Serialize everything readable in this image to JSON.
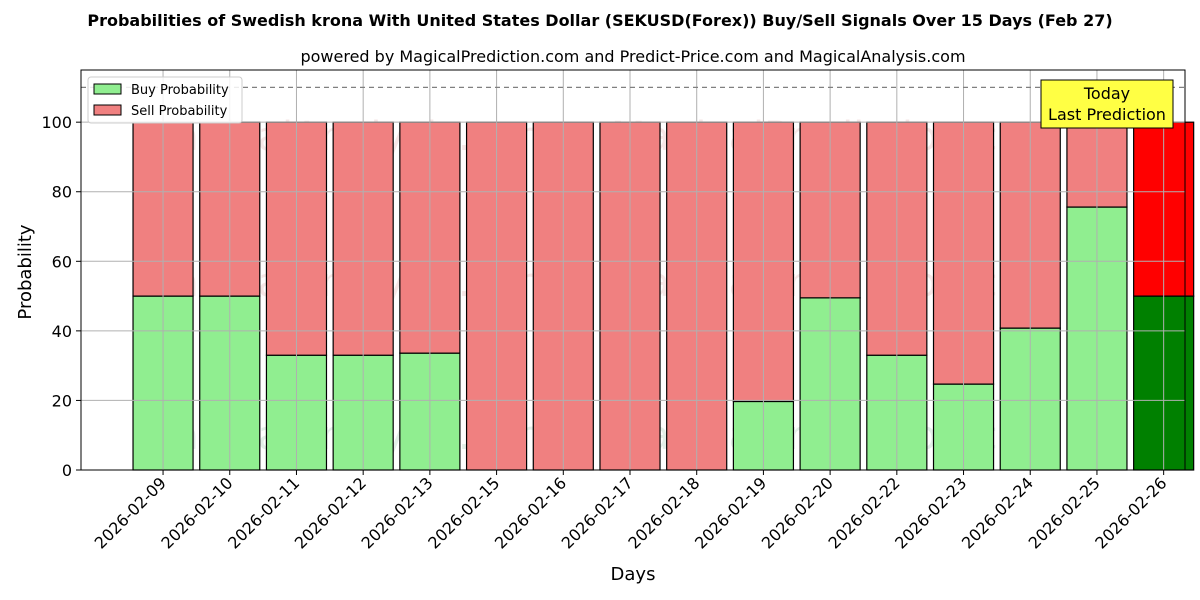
{
  "chart_data": {
    "type": "bar",
    "stacked": true,
    "title": "Probabilities of Swedish krona With United States Dollar (SEKUSD(Forex)) Buy/Sell Signals Over 15 Days (Feb 27)",
    "subtitle": "powered by MagicalPrediction.com and Predict-Price.com and MagicalAnalysis.com",
    "xlabel": "Days",
    "ylabel": "Probability",
    "ylim": [
      0,
      115
    ],
    "yticks": [
      0,
      20,
      40,
      60,
      80,
      100
    ],
    "grid": true,
    "legend_position": "top-left",
    "reference_line": 110,
    "categories": [
      "2026-02-09",
      "2026-02-10",
      "2026-02-11",
      "2026-02-12",
      "2026-02-13",
      "2026-02-15",
      "2026-02-16",
      "2026-02-17",
      "2026-02-18",
      "2026-02-19",
      "2026-02-20",
      "2026-02-22",
      "2026-02-23",
      "2026-02-24",
      "2026-02-25",
      "2026-02-26"
    ],
    "series": [
      {
        "name": "Buy Probability",
        "values": [
          50,
          50,
          33,
          33,
          33.6,
          0,
          0,
          0,
          0,
          19.7,
          49.5,
          33,
          24.7,
          40.8,
          75.6,
          50
        ],
        "color": "#90ee90",
        "highlight_color": "#008000"
      },
      {
        "name": "Sell Probability",
        "values": [
          50,
          50,
          67,
          67,
          66.4,
          100,
          100,
          100,
          100,
          80.3,
          50.5,
          67,
          75.3,
          59.2,
          24.4,
          50
        ],
        "color": "#f08080",
        "highlight_color": "#ff0000"
      }
    ],
    "highlight_index": 15,
    "annotation": {
      "lines": [
        "Today",
        "Last Prediction"
      ],
      "background": "#ffff44"
    },
    "watermarks": [
      "MagicalAnalysis.com",
      "MagicalPrediction.com"
    ]
  }
}
